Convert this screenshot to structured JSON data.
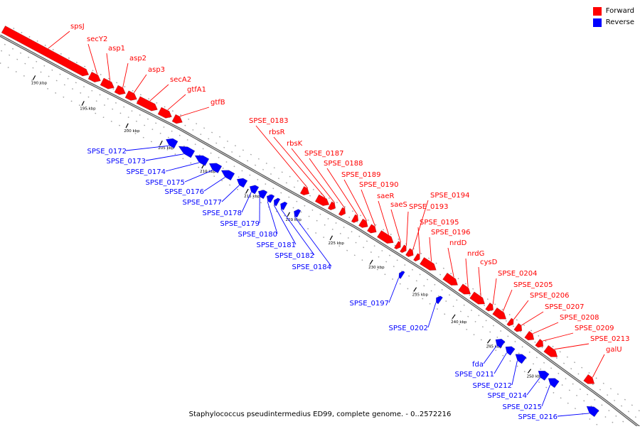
{
  "legend": {
    "forward_label": "Forward",
    "reverse_label": "Reverse",
    "forward_color": "#ff0000",
    "reverse_color": "#0000ff"
  },
  "caption": "Staphylococcus pseudintermedius ED99, complete genome. - 0..2572216",
  "ticks": [
    "190 kbp",
    "195 kbp",
    "200 kbp",
    "205 kbp",
    "210 kbp",
    "215 kbp",
    "220 kbp",
    "225 kbp",
    "230 kbp",
    "235 kbp",
    "240 kbp",
    "245 kbp",
    "250 kbp"
  ],
  "forward_genes": [
    "spsJ",
    "secY2",
    "asp1",
    "asp2",
    "asp3",
    "secA2",
    "gtfA1",
    "gtfB",
    "SPSE_0183",
    "rbsR",
    "rbsK",
    "SPSE_0187",
    "SPSE_0188",
    "SPSE_0189",
    "SPSE_0190",
    "saeR",
    "saeS",
    "SPSE_0193",
    "SPSE_0194",
    "SPSE_0195",
    "SPSE_0196",
    "nrdD",
    "nrdG",
    "cysD",
    "SPSE_0204",
    "SPSE_0205",
    "SPSE_0206",
    "SPSE_0207",
    "SPSE_0208",
    "SPSE_0209",
    "SPSE_0213",
    "galU"
  ],
  "reverse_genes": [
    "SPSE_0172",
    "SPSE_0173",
    "SPSE_0174",
    "SPSE_0175",
    "SPSE_0176",
    "SPSE_0177",
    "SPSE_0178",
    "SPSE_0179",
    "SPSE_0180",
    "SPSE_0181",
    "SPSE_0182",
    "SPSE_0184",
    "SPSE_0197",
    "SPSE_0202",
    "fda",
    "SPSE_0211",
    "SPSE_0212",
    "SPSE_0214",
    "SPSE_0215",
    "SPSE_0216"
  ]
}
